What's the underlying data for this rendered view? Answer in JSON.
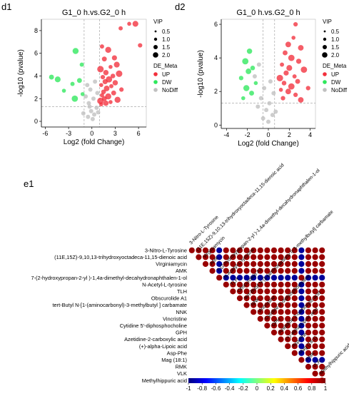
{
  "panels": {
    "d1": "d1",
    "d2": "d2",
    "e1": "e1"
  },
  "chart_data": [
    {
      "type": "scatter",
      "panel": "d1",
      "title": "G1_0 h.vs.G2_0 h",
      "xlabel": "Log2 (fold Change)",
      "ylabel": "-log10 (pvalue)",
      "xlim": [
        -6.5,
        7
      ],
      "ylim": [
        -0.5,
        9
      ],
      "xticks": [
        -6,
        -3,
        0,
        3,
        6
      ],
      "yticks": [
        0,
        2,
        4,
        6,
        8
      ],
      "thresholds": {
        "x": [
          -1,
          1
        ],
        "y": 1.3
      },
      "legend": {
        "vip_title": "VIP",
        "vip_sizes": [
          0.5,
          1.0,
          1.5,
          2.0
        ],
        "vip_labels": [
          "0.5",
          "1.0",
          "1.5",
          "2.0"
        ],
        "meta_title": "DE_Meta",
        "categories": [
          "UP",
          "DW",
          "NoDiff"
        ]
      },
      "colors": {
        "UP": "#f2303c",
        "DW": "#2ee85c",
        "NoDiff": "#c0c0c0"
      },
      "series": [
        {
          "name": "UP",
          "points": [
            [
              4.8,
              8.6
            ],
            [
              5.6,
              8.6
            ],
            [
              3.7,
              8.2
            ],
            [
              6.2,
              6.7
            ],
            [
              1.3,
              6.6
            ],
            [
              2.1,
              6.3
            ],
            [
              2.9,
              5.6
            ],
            [
              1.6,
              5.5
            ],
            [
              3.2,
              5.0
            ],
            [
              2.4,
              4.8
            ],
            [
              1.1,
              4.6
            ],
            [
              1.8,
              4.3
            ],
            [
              3.5,
              4.2
            ],
            [
              2.7,
              4.0
            ],
            [
              1.4,
              3.9
            ],
            [
              2.2,
              3.7
            ],
            [
              1.7,
              3.5
            ],
            [
              3.0,
              3.4
            ],
            [
              1.2,
              3.2
            ],
            [
              2.5,
              3.1
            ],
            [
              1.9,
              2.9
            ],
            [
              3.8,
              2.8
            ],
            [
              1.5,
              2.6
            ],
            [
              2.8,
              2.5
            ],
            [
              1.3,
              2.3
            ],
            [
              2.1,
              2.2
            ],
            [
              1.6,
              2.0
            ],
            [
              3.3,
              1.9
            ],
            [
              1.1,
              1.8
            ],
            [
              2.4,
              1.7
            ],
            [
              1.8,
              1.6
            ],
            [
              1.2,
              1.5
            ]
          ]
        },
        {
          "name": "DW",
          "points": [
            [
              -2.1,
              6.2
            ],
            [
              -1.3,
              5.0
            ],
            [
              -5.2,
              3.9
            ],
            [
              -4.4,
              3.7
            ],
            [
              -1.6,
              3.6
            ],
            [
              -2.5,
              3.3
            ],
            [
              -3.6,
              2.7
            ],
            [
              -1.2,
              2.4
            ],
            [
              -2.2,
              2.0
            ]
          ]
        },
        {
          "name": "NoDiff",
          "points": [
            [
              -0.6,
              3.2
            ],
            [
              0.4,
              3.5
            ],
            [
              -0.2,
              2.8
            ],
            [
              0.7,
              2.5
            ],
            [
              -0.8,
              2.2
            ],
            [
              0.2,
              2.0
            ],
            [
              -0.4,
              1.6
            ],
            [
              0.6,
              1.2
            ],
            [
              -0.1,
              0.9
            ],
            [
              0.3,
              0.6
            ],
            [
              -0.5,
              0.4
            ],
            [
              0.1,
              0.2
            ],
            [
              0.8,
              0.8
            ],
            [
              -0.3,
              1.3
            ],
            [
              -1.1,
              0.7
            ]
          ]
        }
      ]
    },
    {
      "type": "scatter",
      "panel": "d2",
      "title": "G1_0 h.vs.G2_0 h",
      "xlabel": "Log2 (fold Change)",
      "ylabel": "-log10 (pvalue)",
      "xlim": [
        -4.5,
        4.5
      ],
      "ylim": [
        -0.2,
        6.3
      ],
      "xticks": [
        -4,
        -2,
        0,
        2,
        4
      ],
      "yticks": [
        0,
        2,
        4,
        6
      ],
      "thresholds": {
        "x": [
          -0.5,
          0.6
        ],
        "y": 1.3
      },
      "legend": {
        "vip_title": "VIP",
        "vip_sizes": [
          0.5,
          1.0,
          1.5,
          2.0
        ],
        "vip_labels": [
          "0.5",
          "1.0",
          "1.5",
          "2.0"
        ],
        "meta_title": "DE_Meta",
        "categories": [
          "UP",
          "DW",
          "NoDiff"
        ]
      },
      "colors": {
        "UP": "#f2303c",
        "DW": "#2ee85c",
        "NoDiff": "#c0c0c0"
      },
      "series": [
        {
          "name": "UP",
          "points": [
            [
              2.6,
              6.0
            ],
            [
              2.4,
              5.2
            ],
            [
              1.9,
              4.8
            ],
            [
              3.1,
              4.6
            ],
            [
              1.6,
              4.3
            ],
            [
              2.2,
              4.0
            ],
            [
              2.9,
              3.8
            ],
            [
              1.3,
              3.6
            ],
            [
              2.0,
              3.4
            ],
            [
              3.4,
              3.3
            ],
            [
              1.7,
              3.1
            ],
            [
              2.5,
              2.9
            ],
            [
              1.1,
              2.8
            ],
            [
              2.8,
              2.6
            ],
            [
              1.5,
              2.5
            ],
            [
              2.2,
              2.3
            ],
            [
              3.8,
              2.2
            ],
            [
              1.2,
              2.1
            ],
            [
              1.9,
              2.0
            ],
            [
              2.6,
              1.8
            ],
            [
              1.4,
              1.6
            ],
            [
              3.1,
              1.5
            ]
          ]
        },
        {
          "name": "DW",
          "points": [
            [
              -1.8,
              4.4
            ],
            [
              -2.2,
              3.8
            ],
            [
              -1.5,
              3.4
            ],
            [
              -1.9,
              3.2
            ],
            [
              -2.6,
              2.8
            ],
            [
              -1.2,
              2.5
            ],
            [
              -2.1,
              2.2
            ],
            [
              -1.6,
              1.9
            ],
            [
              -2.4,
              1.6
            ]
          ]
        },
        {
          "name": "NoDiff",
          "points": [
            [
              -0.9,
              3.6
            ],
            [
              -1.3,
              2.9
            ],
            [
              0.2,
              2.6
            ],
            [
              -0.4,
              2.2
            ],
            [
              0.5,
              1.9
            ],
            [
              -0.7,
              1.6
            ],
            [
              0.1,
              1.3
            ],
            [
              -0.2,
              0.9
            ],
            [
              0.4,
              0.6
            ],
            [
              -0.5,
              0.4
            ],
            [
              0.0,
              0.2
            ],
            [
              0.7,
              0.8
            ],
            [
              -1.0,
              1.1
            ]
          ]
        }
      ]
    },
    {
      "type": "heatmap",
      "panel": "e1",
      "metabolites": [
        "3-Nitro-L-Tyrosine",
        "(11E,15Z)-9,10,13-trihydroxyoctadeca-11,15-dienoic acid",
        "Virginiamycin",
        "AMK",
        "7-(2-hydroxypropan-2-yl )-1,4a-dimethyl-decahydronaphthalen-1-ol",
        "N-Acetyl-L-tyrosine",
        "TLH",
        "Obscurolide A1",
        "tert-Butyl N-[1-(aminocarbonyl)-3-methylbutyl ] carbamate",
        "NNK",
        "Vincristine",
        "Cytidine 5'-diphosphocholine",
        "GPH",
        "Azetidine-2-carboxylic acid",
        "(+)-alpha-Lipoic acid",
        "Asp-Phe",
        "Mag (18:1)",
        "RMK",
        "VLK",
        "Methylhippuric acid"
      ],
      "column_labels": [
        "3-Nitro-L-Tyrosine",
        "(11E,15Z)-9,10,13-trihydroxyoctadeca-11,15-dienoic acid",
        "Virginiamycin",
        "AMK",
        "7-(2-hydroxypropan-2-yl )-1,4a-dimethyl-decahydronaphthalen-1-ol",
        "N-Acetyl-L-tyrosine",
        "TLH",
        "Obscurolide A1",
        "tert-Butyl N-[1-(aminocarbony l)-3-methylbutyl] carbamate",
        "NNK",
        "Vincristine",
        "Cytidine 5'-diphosphocholine",
        "GPH",
        "Azetidine-2-carboxylic acid",
        "(+)-alpha-Lipoic acid",
        "Asp-Phe",
        "Mag (18:1)",
        "RMK",
        "VLK",
        "Methylhippuric acid"
      ],
      "negative_indices": [
        4,
        16
      ],
      "value_rule": "correlation = -0.95 if exactly one of the pair is a negative index, else 0.95",
      "colorbar": {
        "ticks": [
          -1,
          -0.8,
          -0.6,
          -0.4,
          -0.2,
          0,
          0.2,
          0.4,
          0.6,
          0.8,
          1
        ],
        "tick_labels": [
          "-1",
          "-0.8",
          "-0.6",
          "-0.4",
          "-0.2",
          "0",
          "0.2",
          "0.4",
          "0.6",
          "0.8",
          "1"
        ],
        "colors": [
          "#00007f",
          "#0000ff",
          "#007fff",
          "#00ffff",
          "#7fff7f",
          "#ffff00",
          "#ff7f00",
          "#ff0000",
          "#7f0000"
        ]
      }
    }
  ]
}
